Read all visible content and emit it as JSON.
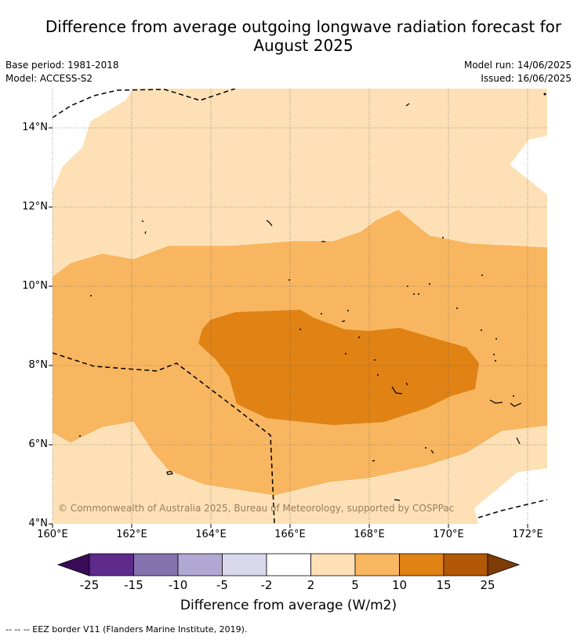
{
  "title_line1": "Difference from average outgoing longwave radiation forecast for",
  "title_line2": "August 2025",
  "base_period": "Base period: 1981-2018",
  "model": "Model: ACCESS-S2",
  "model_run": "Model run: 14/06/2025",
  "issued": "Issued: 16/06/2025",
  "lat_labels": [
    "14°N",
    "12°N",
    "10°N",
    "8°N",
    "6°N",
    "4°N"
  ],
  "lon_labels": [
    "160°E",
    "162°E",
    "164°E",
    "166°E",
    "168°E",
    "170°E",
    "172°E"
  ],
  "copyright": "© Commonwealth of Australia 2025, Bureau of Meteorology, supported by COSPPac",
  "colorbar": {
    "ticks": [
      "-25",
      "-15",
      "-10",
      "-5",
      "-2",
      "2",
      "5",
      "10",
      "15",
      "25"
    ],
    "colors": [
      "#3a0b57",
      "#5e2a8c",
      "#8573b0",
      "#b1a8d3",
      "#dad9ec",
      "#ffffff",
      "#fde0b5",
      "#f9b660",
      "#e08214",
      "#b25806",
      "#7f3b08"
    ],
    "title": "Difference from average (W/m2)"
  },
  "footnote": "--  --  -- EEZ border V11 (Flanders Marine Institute, 2019)."
}
